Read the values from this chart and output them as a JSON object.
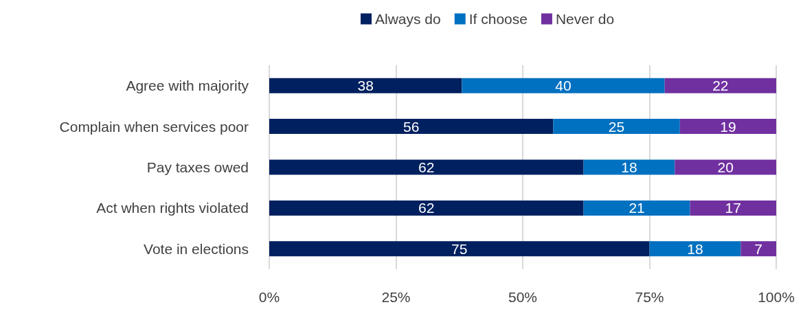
{
  "chart_data": {
    "type": "bar",
    "orientation": "horizontal",
    "stacked": true,
    "data_labels": true,
    "grid": "x",
    "legend": "top",
    "categories": [
      "Agree with majority",
      "Complain when services poor",
      "Pay taxes owed",
      "Act when rights violated",
      "Vote in elections"
    ],
    "series": [
      {
        "name": "Always do",
        "color": "#002060",
        "values": [
          38,
          56,
          62,
          62,
          75
        ]
      },
      {
        "name": "If choose",
        "color": "#0070c0",
        "values": [
          40,
          25,
          18,
          21,
          18
        ]
      },
      {
        "name": "Never do",
        "color": "#7030a0",
        "values": [
          22,
          19,
          20,
          17,
          7
        ]
      }
    ],
    "xlim": [
      0,
      100
    ],
    "xticks": [
      {
        "value": 0,
        "label": "0%"
      },
      {
        "value": 25,
        "label": "25%"
      },
      {
        "value": 50,
        "label": "50%"
      },
      {
        "value": 75,
        "label": "75%"
      },
      {
        "value": 100,
        "label": "100%"
      }
    ]
  }
}
